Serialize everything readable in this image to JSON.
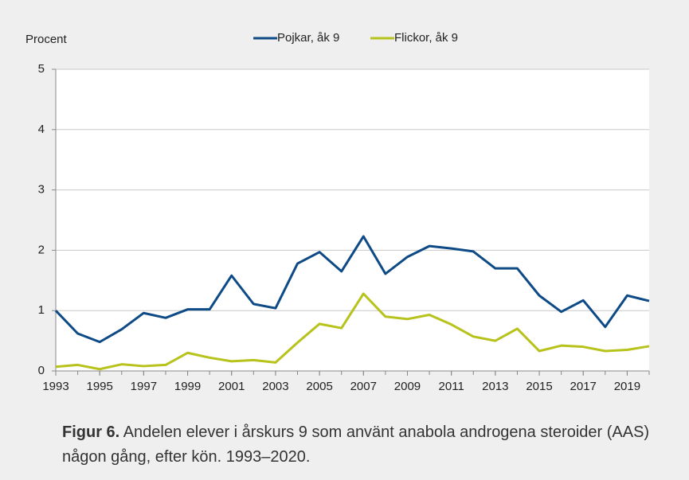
{
  "chart_data": {
    "type": "line",
    "y_label": "Procent",
    "caption_label": "Figur 6.",
    "caption": "Andelen elever i årskurs 9 som använt anabola androgena steroider (AAS) någon gång, efter kön. 1993–2020.",
    "x": [
      1993,
      1994,
      1995,
      1996,
      1997,
      1998,
      1999,
      2000,
      2001,
      2002,
      2003,
      2004,
      2005,
      2006,
      2007,
      2008,
      2009,
      2010,
      2011,
      2012,
      2013,
      2014,
      2015,
      2016,
      2017,
      2018,
      2019,
      2020
    ],
    "series": [
      {
        "name": "Pojkar, åk 9",
        "color": "#0d4a86",
        "values": [
          1.0,
          0.62,
          0.48,
          0.69,
          0.96,
          0.88,
          1.02,
          1.02,
          1.58,
          1.11,
          1.04,
          1.78,
          1.97,
          1.65,
          2.23,
          1.61,
          1.89,
          2.07,
          2.03,
          1.98,
          1.7,
          1.7,
          1.25,
          0.98,
          1.17,
          0.73,
          1.25,
          1.16
        ]
      },
      {
        "name": "Flickor, åk 9",
        "color": "#b7c21a",
        "values": [
          0.07,
          0.1,
          0.03,
          0.11,
          0.08,
          0.1,
          0.3,
          0.22,
          0.16,
          0.18,
          0.14,
          0.47,
          0.78,
          0.71,
          1.28,
          0.9,
          0.86,
          0.93,
          0.77,
          0.57,
          0.5,
          0.7,
          0.33,
          0.42,
          0.4,
          0.33,
          0.35,
          0.41
        ]
      }
    ],
    "xlim": [
      1993,
      2020
    ],
    "xticks": [
      1993,
      1995,
      1997,
      1999,
      2001,
      2003,
      2005,
      2007,
      2009,
      2011,
      2013,
      2015,
      2017,
      2019
    ],
    "ylim": [
      0,
      5
    ],
    "yticks": [
      0,
      1,
      2,
      3,
      4,
      5
    ],
    "grid": true,
    "legend": "top"
  }
}
